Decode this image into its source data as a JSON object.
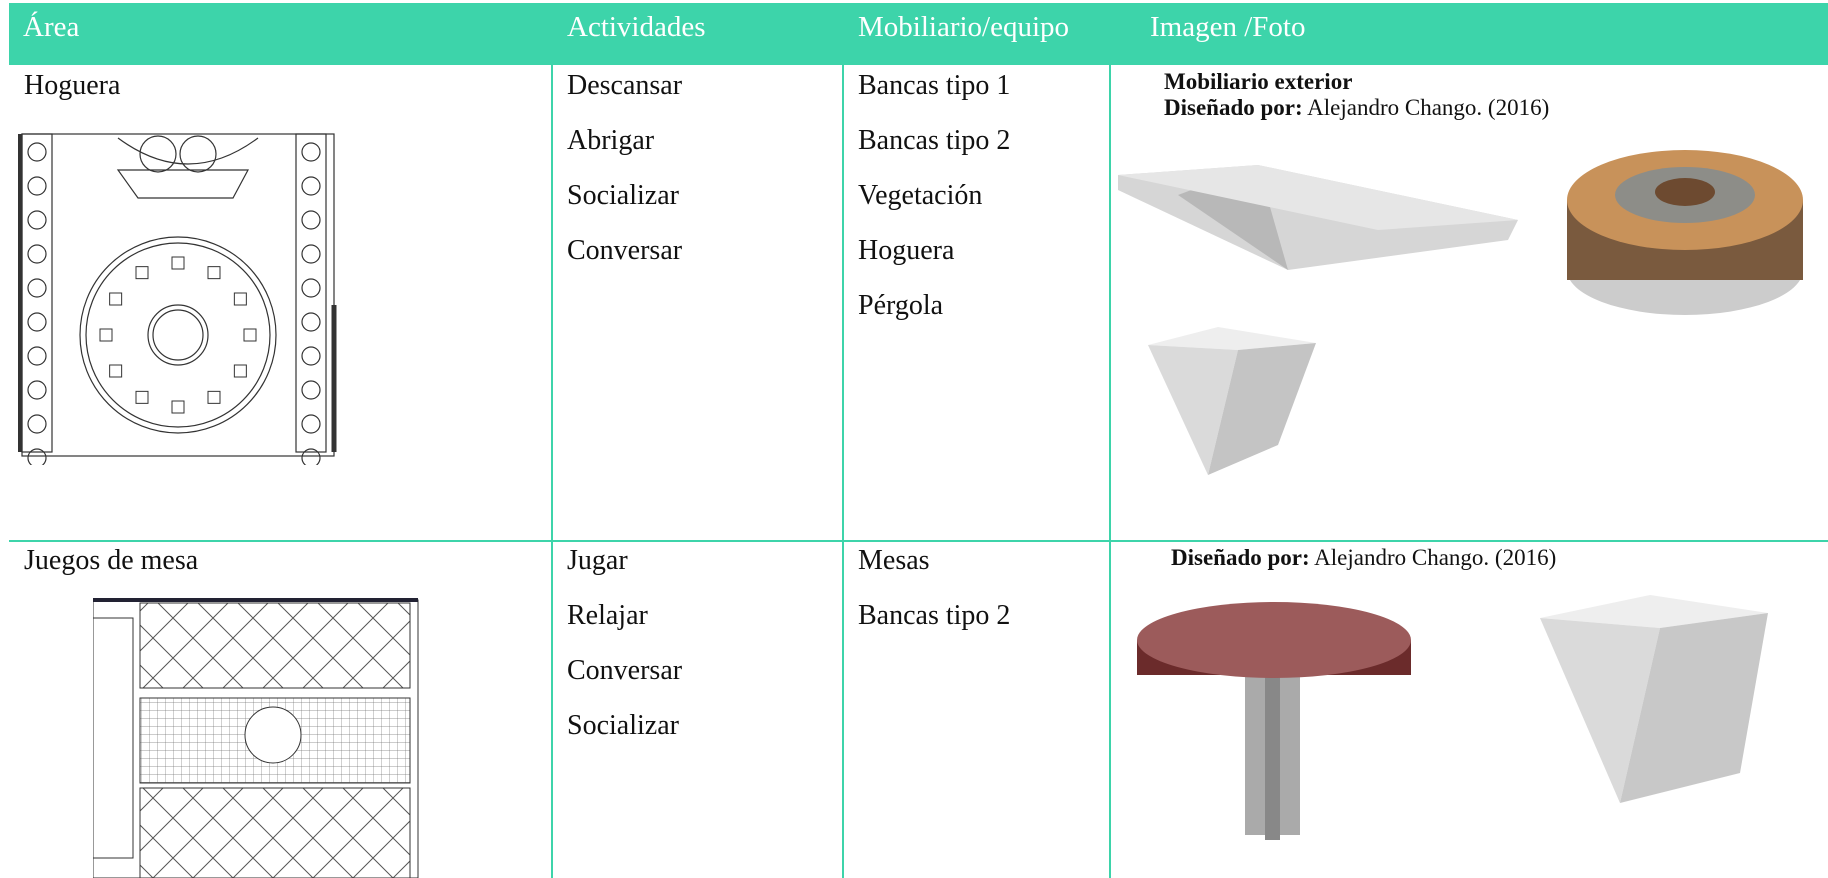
{
  "table": {
    "header": [
      "Área",
      "Actividades",
      "Mobiliario/equipo",
      "Imagen /Foto"
    ],
    "rows": [
      {
        "area": "Hoguera",
        "actividades": [
          "Descansar",
          "Abrigar",
          "Socializar",
          "Conversar"
        ],
        "mobiliario": [
          "Bancas tipo 1",
          "Bancas tipo 2",
          "Vegetación",
          "Hoguera",
          "Pérgola"
        ],
        "foto": {
          "title": "Mobiliario exterior",
          "credit_label": "Diseñado por:",
          "credit": "Alejandro Chango. (2016)"
        }
      },
      {
        "area": "Juegos de mesa",
        "actividades": [
          "Jugar",
          "Relajar",
          "Conversar",
          "Socializar"
        ],
        "mobiliario": [
          "Mesas",
          "Bancas tipo 2"
        ],
        "foto": {
          "credit_label": "Diseñado por:",
          "credit": "Alejandro Chango. (2016)"
        }
      }
    ]
  }
}
